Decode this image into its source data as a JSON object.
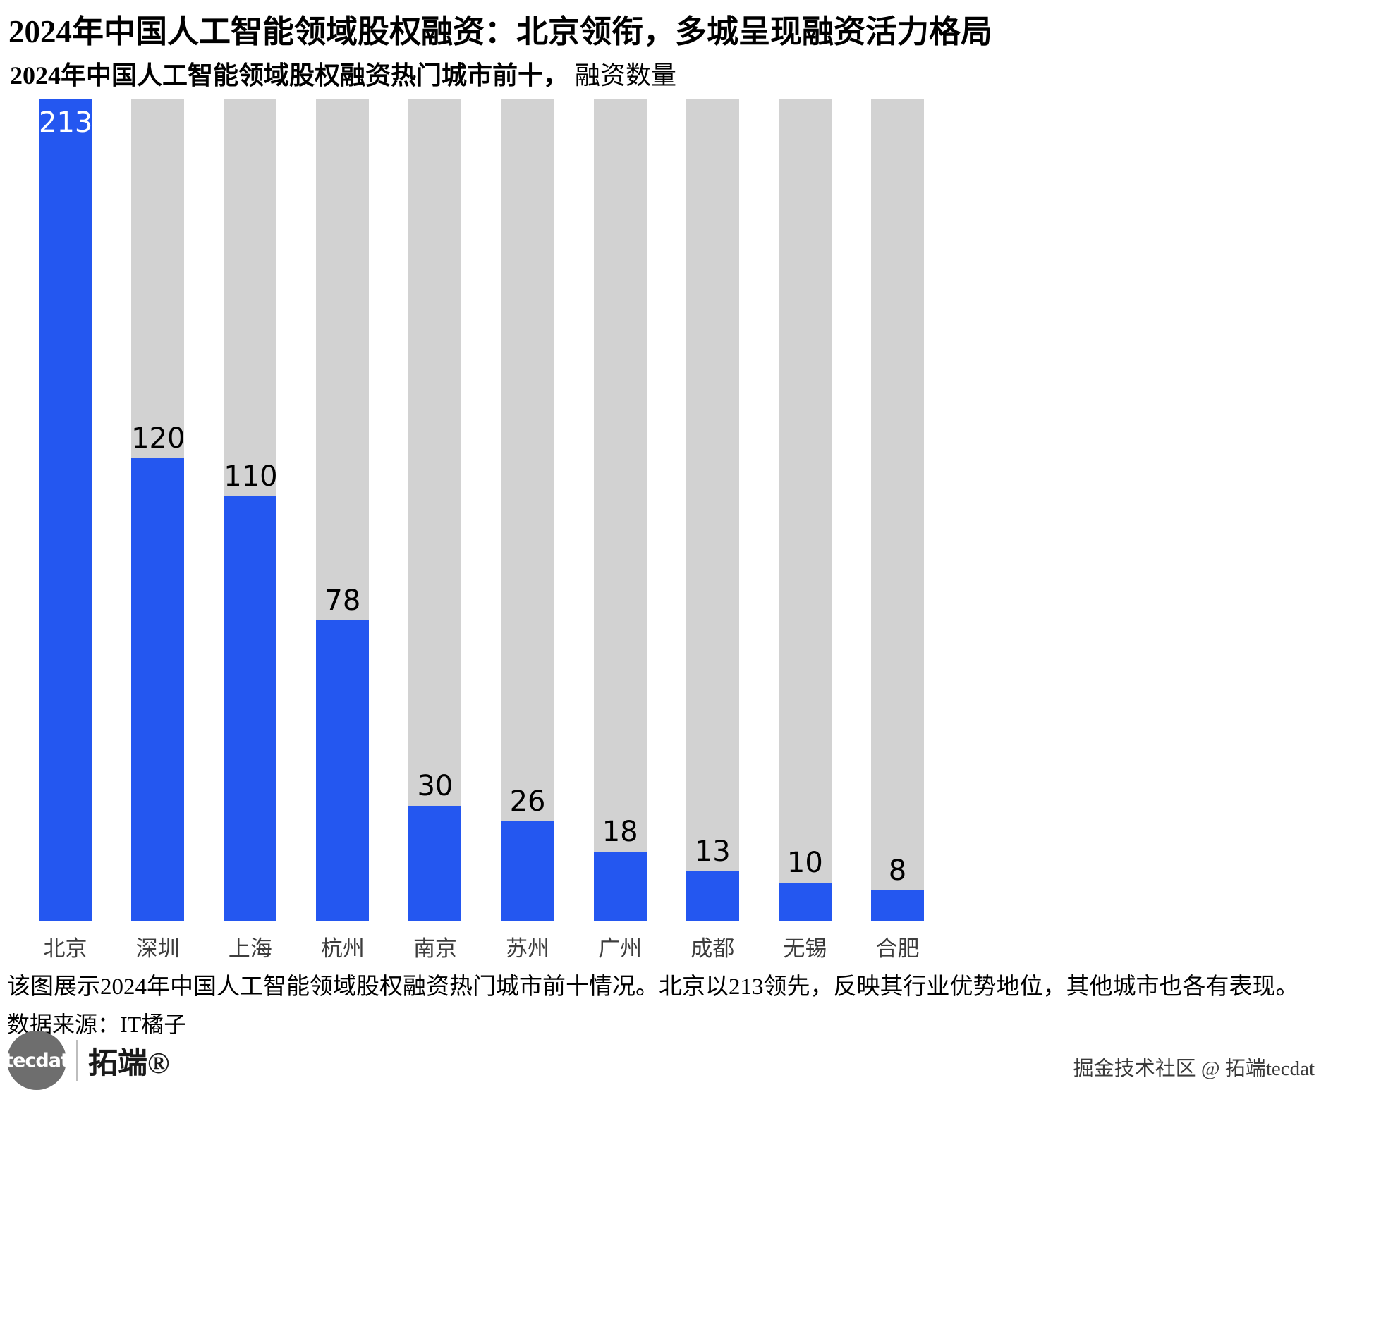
{
  "header": {
    "title": "2024年中国人工智能领域股权融资：北京领衔，多城呈现融资活力格局",
    "subtitle_main": "2024年中国人工智能领域股权融资热门城市前十，",
    "subtitle_secondary": "融资数量"
  },
  "chart_data": {
    "type": "bar",
    "title": "2024年中国人工智能领域股权融资热门城市前十，融资数量",
    "categories": [
      "北京",
      "深圳",
      "上海",
      "杭州",
      "南京",
      "苏州",
      "广州",
      "成都",
      "无锡",
      "合肥"
    ],
    "values": [
      213,
      120,
      110,
      78,
      30,
      26,
      18,
      13,
      10,
      8
    ],
    "xlabel": "",
    "ylabel": "",
    "ylim": [
      0,
      213
    ],
    "grid": false,
    "legend": false,
    "bar_color": "#2457f0",
    "track_color": "#d2d2d2",
    "value_label_color": "#000000",
    "value_label_inside_color": "#ffffff"
  },
  "footer": {
    "note": "该图展示2024年中国人工智能领域股权融资热门城市前十情况。北京以213领先，反映其行业优势地位，其他城市也各有表现。",
    "source": "数据来源：IT橘子",
    "brand": {
      "circle_text": "tecdat",
      "name": "拓端®"
    },
    "credit": "掘金技术社区 @ 拓端tecdat"
  }
}
